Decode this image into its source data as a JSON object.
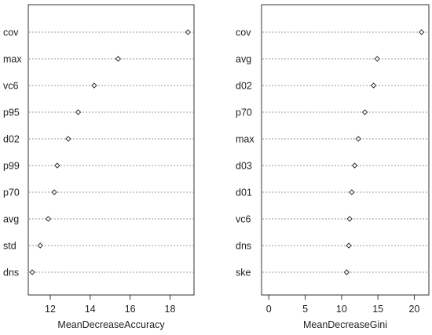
{
  "chart_data": [
    {
      "type": "dotchart",
      "xlabel": "MeanDecreaseAccuracy",
      "xlim": [
        10.9,
        19.2
      ],
      "xticks": [
        12,
        14,
        16,
        18
      ],
      "categories": [
        "cov",
        "max",
        "vc6",
        "p95",
        "d02",
        "p99",
        "p70",
        "avg",
        "std",
        "dns"
      ],
      "values": [
        18.9,
        15.4,
        14.2,
        13.4,
        12.9,
        12.35,
        12.2,
        11.9,
        11.5,
        11.1
      ],
      "grid": "dotted horizontal lines",
      "marker": "open diamond"
    },
    {
      "type": "dotchart",
      "xlabel": "MeanDecreaseGini",
      "xlim": [
        -1,
        22
      ],
      "xticks": [
        0,
        5,
        10,
        15,
        20
      ],
      "categories": [
        "cov",
        "avg",
        "d02",
        "p70",
        "max",
        "d03",
        "d01",
        "vc6",
        "dns",
        "ske"
      ],
      "values": [
        21.0,
        14.9,
        14.4,
        13.2,
        12.3,
        11.8,
        11.4,
        11.1,
        11.0,
        10.7
      ],
      "grid": "dotted horizontal lines",
      "marker": "open diamond"
    }
  ]
}
